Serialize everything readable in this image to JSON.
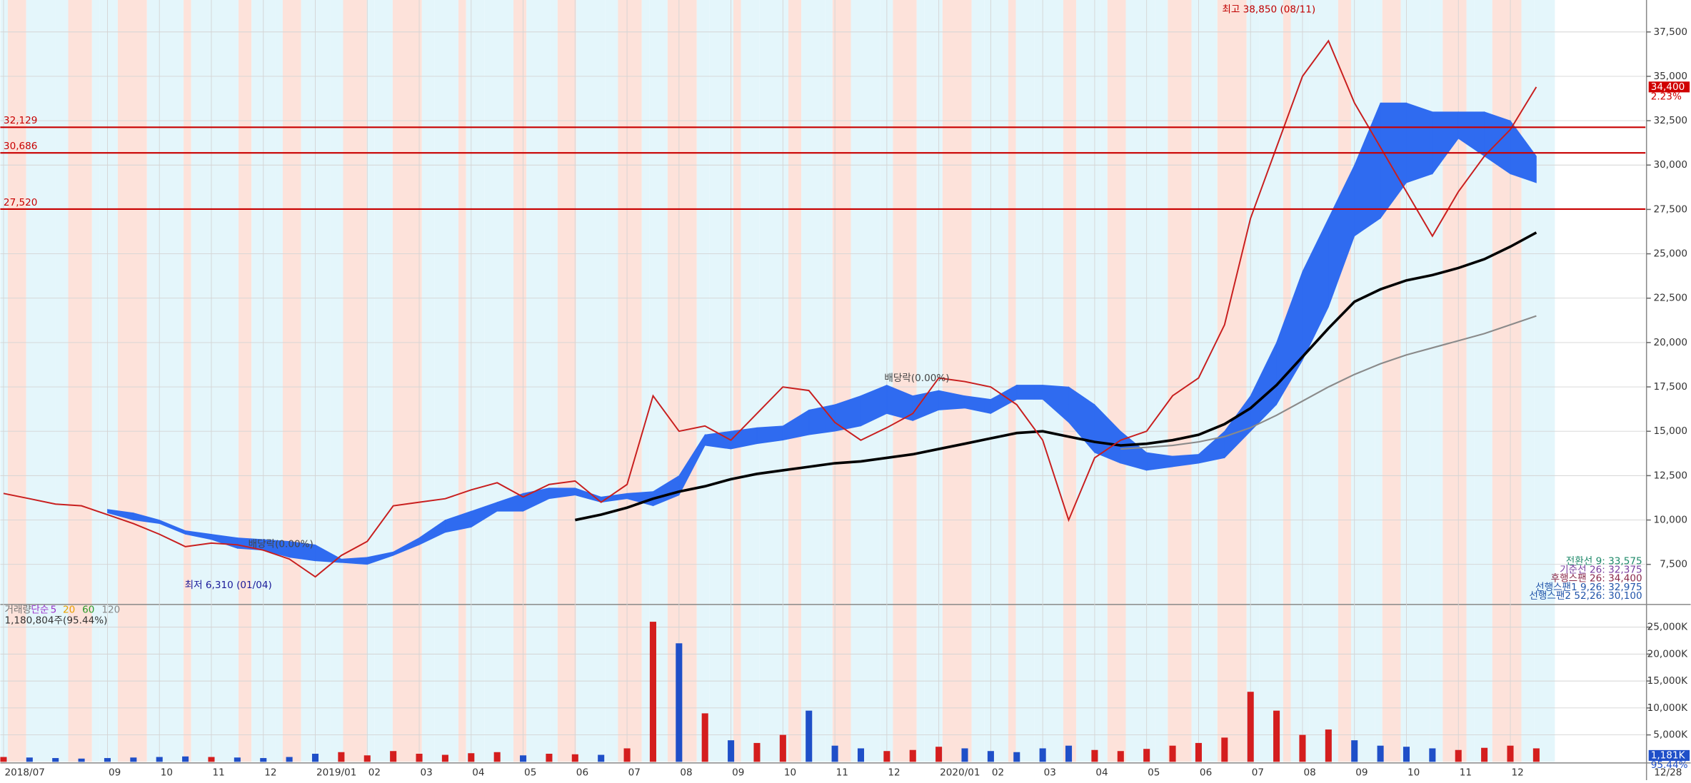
{
  "chart_data": {
    "type": "stock",
    "x": [
      0,
      0.5,
      1,
      1.5,
      2,
      2.5,
      3,
      3.5,
      4,
      4.5,
      5,
      5.5,
      6,
      6.5,
      7,
      7.5,
      8,
      8.5,
      9,
      9.5,
      10,
      10.5,
      11,
      11.5,
      12,
      12.5,
      13,
      13.5,
      14,
      14.5,
      15,
      15.5,
      16,
      16.5,
      17,
      17.5,
      18,
      18.5,
      19,
      19.5,
      20,
      20.5,
      21,
      21.5,
      22,
      22.5,
      23,
      23.5,
      24,
      24.5,
      25,
      25.5,
      26,
      26.5,
      27,
      27.5,
      28,
      28.5,
      29,
      29.5
    ],
    "xlim": [
      0,
      31.6
    ],
    "xticks": [
      {
        "value": 0,
        "label": "2018/07"
      },
      {
        "value": 2,
        "label": "09"
      },
      {
        "value": 3,
        "label": "10"
      },
      {
        "value": 4,
        "label": "11"
      },
      {
        "value": 5,
        "label": "12"
      },
      {
        "value": 6,
        "label": "2019/01"
      },
      {
        "value": 7,
        "label": "02"
      },
      {
        "value": 8,
        "label": "03"
      },
      {
        "value": 9,
        "label": "04"
      },
      {
        "value": 10,
        "label": "05"
      },
      {
        "value": 11,
        "label": "06"
      },
      {
        "value": 12,
        "label": "07"
      },
      {
        "value": 13,
        "label": "08"
      },
      {
        "value": 14,
        "label": "09"
      },
      {
        "value": 15,
        "label": "10"
      },
      {
        "value": 16,
        "label": "11"
      },
      {
        "value": 17,
        "label": "12"
      },
      {
        "value": 18,
        "label": "2020/01"
      },
      {
        "value": 19,
        "label": "02"
      },
      {
        "value": 20,
        "label": "03"
      },
      {
        "value": 21,
        "label": "04"
      },
      {
        "value": 22,
        "label": "05"
      },
      {
        "value": 23,
        "label": "06"
      },
      {
        "value": 24,
        "label": "07"
      },
      {
        "value": 25,
        "label": "08"
      },
      {
        "value": 26,
        "label": "09"
      },
      {
        "value": 27,
        "label": "10"
      },
      {
        "value": 28,
        "label": "11"
      },
      {
        "value": 29,
        "label": "12"
      }
    ],
    "x_end_label": "12/28",
    "ylim": [
      5300,
      39300
    ],
    "yticks": [
      {
        "value": 7500,
        "label": "7,500"
      },
      {
        "value": 10000,
        "label": "10,000"
      },
      {
        "value": 12500,
        "label": "12,500"
      },
      {
        "value": 15000,
        "label": "15,000"
      },
      {
        "value": 17500,
        "label": "17,500"
      },
      {
        "value": 20000,
        "label": "20,000"
      },
      {
        "value": 22500,
        "label": "22,500"
      },
      {
        "value": 25000,
        "label": "25,000"
      },
      {
        "value": 27500,
        "label": "27,500"
      },
      {
        "value": 30000,
        "label": "30,000"
      },
      {
        "value": 32500,
        "label": "32,500"
      },
      {
        "value": 35000,
        "label": "35,000"
      },
      {
        "value": 37500,
        "label": "37,500"
      }
    ],
    "price": {
      "color": "#c81e1e",
      "values": [
        11500,
        11200,
        10900,
        10800,
        10300,
        9800,
        9200,
        8500,
        8700,
        8600,
        8300,
        7800,
        6800,
        8000,
        8800,
        10800,
        11000,
        11200,
        11700,
        12100,
        11300,
        12000,
        12200,
        11000,
        12000,
        17000,
        15000,
        15300,
        14500,
        16000,
        17500,
        17300,
        15500,
        14500,
        15200,
        16000,
        18000,
        17800,
        17500,
        16500,
        14500,
        10000,
        13500,
        14500,
        15000,
        17000,
        18000,
        21000,
        27000,
        31000,
        35000,
        37000,
        33500,
        31000,
        28500,
        26000,
        28500,
        30500,
        32000,
        34400
      ]
    },
    "ma120": {
      "color": "#000000",
      "values": [
        null,
        null,
        null,
        null,
        null,
        null,
        null,
        null,
        null,
        null,
        null,
        null,
        null,
        null,
        null,
        null,
        null,
        null,
        null,
        null,
        null,
        null,
        10000,
        10300,
        10700,
        11200,
        11600,
        11900,
        12300,
        12600,
        12800,
        13000,
        13200,
        13300,
        13500,
        13700,
        14000,
        14300,
        14600,
        14900,
        15000,
        14700,
        14400,
        14200,
        14300,
        14500,
        14800,
        15400,
        16300,
        17600,
        19200,
        20800,
        22300,
        23000,
        23500,
        23800,
        24200,
        24700,
        25400,
        26200
      ]
    },
    "ma240": {
      "color": "#8a8a8a",
      "values": [
        null,
        null,
        null,
        null,
        null,
        null,
        null,
        null,
        null,
        null,
        null,
        null,
        null,
        null,
        null,
        null,
        null,
        null,
        null,
        null,
        null,
        null,
        null,
        null,
        null,
        null,
        null,
        null,
        null,
        null,
        null,
        null,
        null,
        null,
        null,
        null,
        null,
        null,
        null,
        null,
        null,
        null,
        null,
        14000,
        14100,
        14200,
        14400,
        14700,
        15200,
        15900,
        16700,
        17500,
        18200,
        18800,
        19300,
        19700,
        20100,
        20500,
        21000,
        21500
      ]
    },
    "cloud": {
      "color": "#2f6bf0",
      "span1": [
        null,
        null,
        null,
        null,
        10600,
        10400,
        10000,
        9400,
        9200,
        9000,
        8900,
        8800,
        8600,
        7800,
        7900,
        8200,
        9000,
        10000,
        10500,
        11000,
        11500,
        11800,
        11800,
        11300,
        11500,
        11600,
        12500,
        14800,
        15000,
        15200,
        15300,
        16200,
        16500,
        17000,
        17600,
        17000,
        17300,
        17000,
        16800,
        17600,
        17600,
        17500,
        16500,
        15000,
        13800,
        13600,
        13700,
        15000,
        17000,
        20000,
        24000,
        27000,
        30000,
        33500,
        33500,
        33000,
        33000,
        33000,
        32500,
        30500
      ],
      "span2": [
        null,
        null,
        null,
        null,
        10400,
        10000,
        9800,
        9200,
        8900,
        8400,
        8300,
        7900,
        7700,
        7600,
        7500,
        8000,
        8600,
        9300,
        9600,
        10500,
        10500,
        11200,
        11400,
        11000,
        11200,
        10800,
        11400,
        14200,
        14000,
        14300,
        14500,
        14800,
        15000,
        15300,
        16000,
        15600,
        16200,
        16300,
        16000,
        16800,
        16800,
        15500,
        13800,
        13200,
        12800,
        13000,
        13200,
        13500,
        15000,
        16500,
        19000,
        22000,
        26000,
        27000,
        29000,
        29500,
        31500,
        30500,
        29500,
        29000
      ]
    },
    "levels": [
      {
        "value": 32129,
        "label": "32,129",
        "color": "#c80000"
      },
      {
        "value": 30686,
        "label": "30,686",
        "color": "#c80000"
      },
      {
        "value": 27520,
        "label": "27,520",
        "color": "#c80000"
      }
    ],
    "annotations": [
      {
        "text": "최고 38,850 (08/11)",
        "color": "#c00000"
      },
      {
        "text": "최저 6,310 (01/04)",
        "color": "#1a1a99"
      },
      {
        "text": "배당락(0.00%)",
        "color": "#444444"
      },
      {
        "text": "배당락(0.00%)",
        "color": "#444444"
      }
    ],
    "last_price": {
      "value": 34400,
      "label": "34,400"
    },
    "last_change": {
      "value": 2.23,
      "label": "2.23%"
    },
    "legend_texts": [
      {
        "text": "전환선 9: 33,575",
        "color": "#1f8a6a"
      },
      {
        "text": "기준선 26: 32,375",
        "color": "#7a3fa0"
      },
      {
        "text": "후행스팬 26: 34,400",
        "color": "#8a2a4a"
      },
      {
        "text": "선행스팬1 9,26: 32,975",
        "color": "#2255aa"
      },
      {
        "text": "선행스팬2 52,26: 30,100",
        "color": "#2255aa"
      }
    ],
    "volume": {
      "ylim": [
        0,
        29000
      ],
      "yticks": [
        {
          "value": 5000,
          "label": "5,000K"
        },
        {
          "value": 10000,
          "label": "10,000K"
        },
        {
          "value": 15000,
          "label": "15,000K"
        },
        {
          "value": 20000,
          "label": "20,000K"
        },
        {
          "value": 25000,
          "label": "25,000K"
        }
      ],
      "values": [
        900,
        800,
        700,
        600,
        700,
        800,
        900,
        1000,
        900,
        800,
        700,
        900,
        1500,
        1800,
        1200,
        2000,
        1500,
        1300,
        1600,
        1800,
        1200,
        1500,
        1400,
        1300,
        2500,
        26000,
        22000,
        9000,
        4000,
        3500,
        5000,
        9500,
        3000,
        2500,
        2000,
        2200,
        2800,
        2500,
        2000,
        1800,
        2500,
        3000,
        2200,
        2000,
        2400,
        3000,
        3500,
        4500,
        13000,
        9500,
        5000,
        6000,
        4000,
        3000,
        2800,
        2500,
        2200,
        2600,
        3000,
        2500
      ],
      "legend": [
        {
          "text": "거래량",
          "color": "#777777"
        },
        {
          "text": "단순",
          "color": "#9933cc"
        },
        {
          "text": "5",
          "color": "#9933cc"
        },
        {
          "text": "20",
          "color": "#e8a000"
        },
        {
          "text": "60",
          "color": "#2a9a2a"
        },
        {
          "text": "120",
          "color": "#888888"
        }
      ],
      "summary": "1,180,804주(95.44%)",
      "last": {
        "value": 1181,
        "label": "1,181K"
      },
      "ratio": {
        "value": 95.44,
        "label": "95.44%"
      }
    }
  }
}
